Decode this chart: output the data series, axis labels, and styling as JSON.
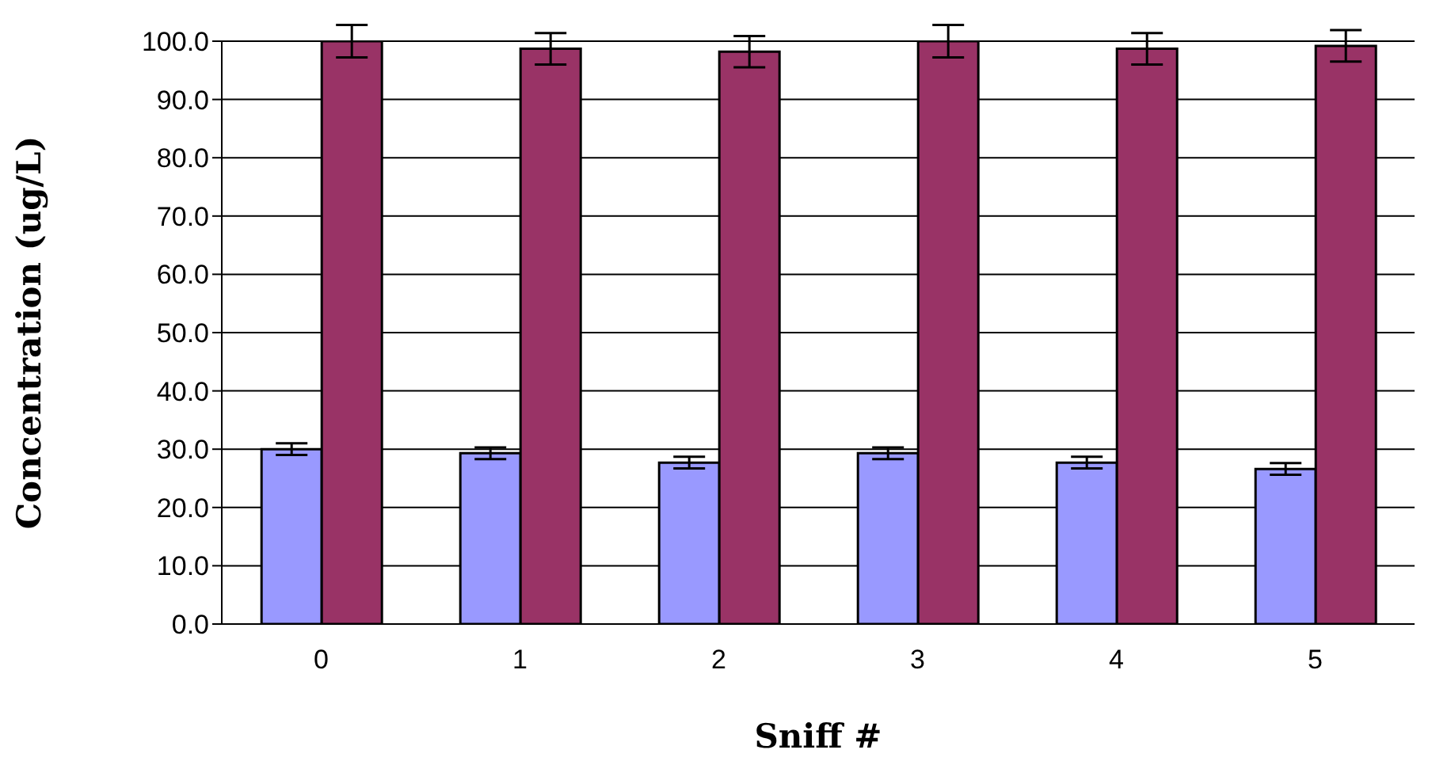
{
  "chart_data": {
    "type": "bar",
    "xlabel": "Sniff #",
    "ylabel": "Concentration (ug/L)",
    "categories": [
      "0",
      "1",
      "2",
      "3",
      "4",
      "5"
    ],
    "series": [
      {
        "color": "#9999ff",
        "values": [
          30.0,
          29.3,
          27.7,
          29.3,
          27.7,
          26.6
        ],
        "errors": [
          1.0,
          1.0,
          1.0,
          1.0,
          1.0,
          1.0
        ]
      },
      {
        "color": "#993366",
        "values": [
          100.0,
          98.7,
          98.2,
          100.0,
          98.7,
          99.2
        ],
        "errors": [
          2.8,
          2.7,
          2.7,
          2.8,
          2.7,
          2.7
        ]
      }
    ],
    "ylim": [
      0,
      100
    ],
    "yticks": [
      {
        "value": 0,
        "label": "0.0"
      },
      {
        "value": 10,
        "label": "10.0"
      },
      {
        "value": 20,
        "label": "20.0"
      },
      {
        "value": 30,
        "label": "30.0"
      },
      {
        "value": 40,
        "label": "40.0"
      },
      {
        "value": 50,
        "label": "50.0"
      },
      {
        "value": 60,
        "label": "60.0"
      },
      {
        "value": 70,
        "label": "70.0"
      },
      {
        "value": 80,
        "label": "80.0"
      },
      {
        "value": 90,
        "label": "90.0"
      },
      {
        "value": 100,
        "label": "100.0"
      }
    ],
    "grid": "y",
    "legend": false
  }
}
